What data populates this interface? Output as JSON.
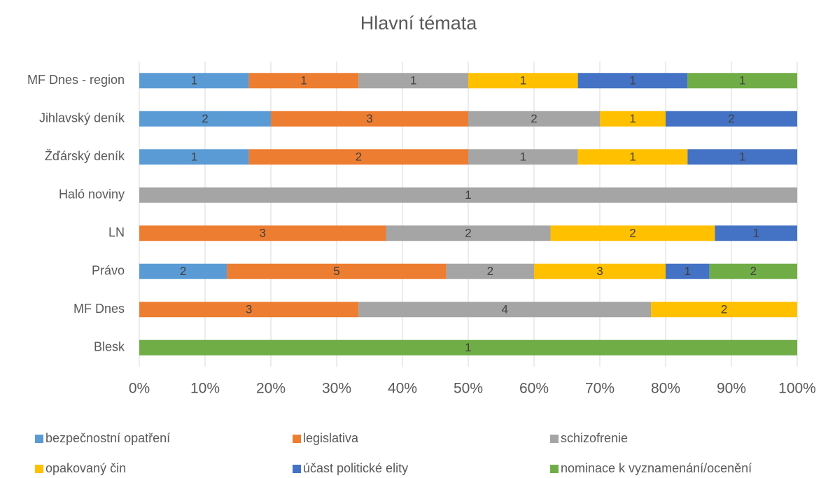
{
  "chart_data": {
    "type": "bar",
    "orientation": "horizontal",
    "stacking": "percent",
    "title": "Hlavní témata",
    "categories": [
      "MF Dnes - region",
      "Jihlavský deník",
      "Žďárský deník",
      "Haló noviny",
      "LN",
      "Právo",
      "MF Dnes",
      "Blesk"
    ],
    "series": [
      {
        "name": "bezpečnostní opatření",
        "color": "#5b9bd5",
        "values": [
          1,
          2,
          1,
          null,
          null,
          2,
          null,
          null
        ]
      },
      {
        "name": "legislativa",
        "color": "#ed7d31",
        "values": [
          1,
          3,
          2,
          null,
          3,
          5,
          3,
          null
        ]
      },
      {
        "name": "schizofrenie",
        "color": "#a5a5a5",
        "values": [
          1,
          2,
          1,
          1,
          2,
          2,
          4,
          null
        ]
      },
      {
        "name": "opakovaný čin",
        "color": "#ffc000",
        "values": [
          1,
          1,
          1,
          null,
          2,
          3,
          2,
          null
        ]
      },
      {
        "name": "účast politické elity",
        "color": "#4472c4",
        "values": [
          1,
          2,
          1,
          null,
          1,
          1,
          null,
          null
        ]
      },
      {
        "name": "nominace k vyznamenání/ocenění",
        "color": "#70ad47",
        "values": [
          1,
          null,
          null,
          null,
          null,
          2,
          null,
          1
        ]
      }
    ],
    "xlim": [
      0,
      100
    ],
    "xticks": [
      {
        "value": 0,
        "label": "0%"
      },
      {
        "value": 10,
        "label": "10%"
      },
      {
        "value": 20,
        "label": "20%"
      },
      {
        "value": 30,
        "label": "30%"
      },
      {
        "value": 40,
        "label": "40%"
      },
      {
        "value": 50,
        "label": "50%"
      },
      {
        "value": 60,
        "label": "60%"
      },
      {
        "value": 70,
        "label": "70%"
      },
      {
        "value": 80,
        "label": "80%"
      },
      {
        "value": 90,
        "label": "90%"
      },
      {
        "value": 100,
        "label": "100%"
      }
    ],
    "grid": true,
    "legend": "bottom"
  }
}
